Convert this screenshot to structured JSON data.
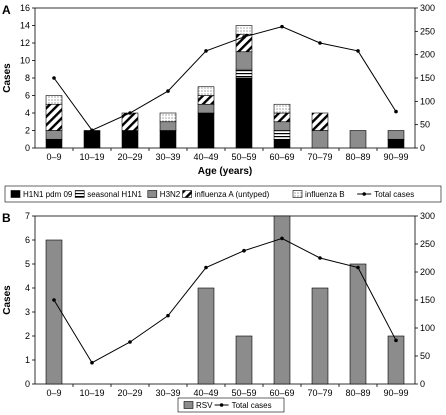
{
  "chart_data": [
    {
      "panel": "A",
      "type": "bar",
      "stacked": true,
      "categories": [
        "0–9",
        "10–19",
        "20–29",
        "30–39",
        "40–49",
        "50–59",
        "60–69",
        "70–79",
        "80–89",
        "90–99"
      ],
      "xlabel": "Age (years)",
      "ylabel": "Cases",
      "ylim": [
        0,
        16
      ],
      "yticks": [
        0,
        2,
        4,
        6,
        8,
        10,
        12,
        14,
        16
      ],
      "y2lim": [
        0,
        300
      ],
      "y2ticks": [
        0,
        50,
        100,
        150,
        200,
        250,
        300
      ],
      "series": [
        {
          "name": "H1N1 pdm 09",
          "values": [
            1,
            2,
            2,
            2,
            4,
            8,
            1,
            0,
            0,
            1
          ],
          "color": "#000000",
          "pattern": "solid-black"
        },
        {
          "name": "seasonal H1N1",
          "values": [
            0,
            0,
            0,
            0,
            0,
            1,
            1,
            0,
            0,
            0
          ],
          "color": "#ffffff",
          "pattern": "horizontal-lines"
        },
        {
          "name": "H3N2",
          "values": [
            1,
            0,
            0,
            1,
            1,
            2,
            1,
            2,
            2,
            1
          ],
          "color": "#8c8c8c",
          "pattern": "solid-gray"
        },
        {
          "name": "influenza  A (untyped)",
          "values": [
            3,
            0,
            2,
            0,
            1,
            2,
            1,
            2,
            0,
            0
          ],
          "color": "#ffffff",
          "pattern": "diagonal-hatch"
        },
        {
          "name": "influenza B",
          "values": [
            1,
            0,
            0,
            1,
            1,
            1,
            1,
            0,
            0,
            0
          ],
          "color": "#ffffff",
          "pattern": "dotted"
        }
      ],
      "line_series": {
        "name": "Total cases",
        "axis": "right",
        "values": [
          150,
          38,
          75,
          122,
          208,
          238,
          260,
          225,
          208,
          78
        ]
      },
      "legend_placement": "bottom",
      "grid": false
    },
    {
      "panel": "B",
      "type": "bar",
      "categories": [
        "0–9",
        "10–19",
        "20–29",
        "30–39",
        "40–49",
        "50–59",
        "60–69",
        "70–79",
        "80–89",
        "90–99"
      ],
      "xlabel": "Age (years)",
      "ylabel": "Cases",
      "ylim": [
        0,
        7
      ],
      "yticks": [
        0,
        1,
        2,
        3,
        4,
        5,
        6,
        7
      ],
      "y2lim": [
        0,
        300
      ],
      "y2ticks": [
        0,
        50,
        100,
        150,
        200,
        250,
        300
      ],
      "series": [
        {
          "name": "RSV",
          "values": [
            6,
            0,
            0,
            0,
            4,
            2,
            7,
            4,
            5,
            2
          ],
          "color": "#8c8c8c",
          "pattern": "solid-gray"
        }
      ],
      "line_series": {
        "name": "Total cases",
        "axis": "right",
        "values": [
          150,
          38,
          75,
          122,
          208,
          238,
          260,
          225,
          208,
          78
        ]
      },
      "legend_placement": "bottom",
      "grid": false
    }
  ]
}
